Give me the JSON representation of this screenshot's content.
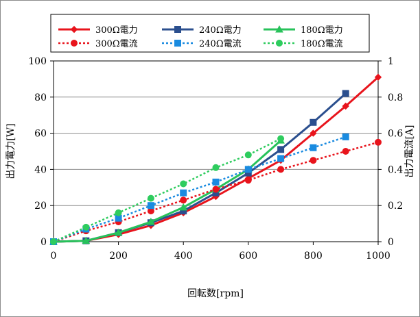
{
  "chart_data": {
    "type": "line",
    "title": "",
    "xlabel": "回転数[rpm]",
    "ylabel": "出力電力[W]",
    "y2label": "出力電流[A]",
    "xlim": [
      0,
      1000
    ],
    "ylim": [
      0,
      100
    ],
    "y2lim": [
      0,
      1
    ],
    "xticks": [
      0,
      200,
      400,
      600,
      800,
      1000
    ],
    "yticks": [
      0,
      20,
      40,
      60,
      80,
      100
    ],
    "y2ticks": [
      0,
      0.2,
      0.4,
      0.6,
      0.8,
      1
    ],
    "xtick_labels": [
      "0",
      "200",
      "400",
      "600",
      "800",
      "1000"
    ],
    "ytick_labels": [
      "0",
      "20",
      "40",
      "60",
      "80",
      "100"
    ],
    "y2tick_labels": [
      "0",
      "0.2",
      "0.4",
      "0.6",
      "0.8",
      "1"
    ],
    "grid": "horizontal",
    "legend_position": "top",
    "series": [
      {
        "name": "300Ω電力",
        "axis": "left",
        "style": "solid",
        "marker": "diamond",
        "color": "#e8141c",
        "x": [
          0,
          100,
          200,
          300,
          400,
          500,
          600,
          700,
          800,
          900,
          1000
        ],
        "y": [
          0,
          0.5,
          4,
          9,
          16,
          25,
          35,
          45,
          60,
          75,
          91
        ]
      },
      {
        "name": "240Ω電力",
        "axis": "left",
        "style": "solid",
        "marker": "square",
        "color": "#2b4f8e",
        "x": [
          0,
          100,
          200,
          300,
          400,
          500,
          600,
          700,
          800,
          900
        ],
        "y": [
          0,
          0.5,
          5,
          10.5,
          17,
          27,
          38,
          51,
          66,
          82
        ]
      },
      {
        "name": "180Ω電力",
        "axis": "left",
        "style": "solid",
        "marker": "triangle",
        "color": "#27c25a",
        "x": [
          0,
          100,
          200,
          300,
          400,
          500,
          600,
          700
        ],
        "y": [
          0,
          0.5,
          5,
          11,
          19,
          29,
          40,
          56
        ]
      },
      {
        "name": "300Ω電流",
        "axis": "right",
        "style": "dotted",
        "marker": "circle",
        "color": "#e8141c",
        "x": [
          0,
          100,
          200,
          300,
          400,
          500,
          600,
          700,
          800,
          900,
          1000
        ],
        "y": [
          0,
          0.06,
          0.11,
          0.17,
          0.23,
          0.29,
          0.34,
          0.4,
          0.45,
          0.5,
          0.55
        ]
      },
      {
        "name": "240Ω電流",
        "axis": "right",
        "style": "dotted",
        "marker": "square",
        "color": "#1a8be0",
        "x": [
          0,
          100,
          200,
          300,
          400,
          500,
          600,
          700,
          800,
          900
        ],
        "y": [
          0,
          0.07,
          0.13,
          0.2,
          0.27,
          0.33,
          0.4,
          0.46,
          0.52,
          0.58
        ]
      },
      {
        "name": "180Ω電流",
        "axis": "right",
        "style": "dotted",
        "marker": "circle",
        "color": "#2ecc5e",
        "x": [
          0,
          100,
          200,
          300,
          400,
          500,
          600,
          700
        ],
        "y": [
          0,
          0.08,
          0.16,
          0.24,
          0.32,
          0.41,
          0.48,
          0.57
        ]
      }
    ]
  }
}
